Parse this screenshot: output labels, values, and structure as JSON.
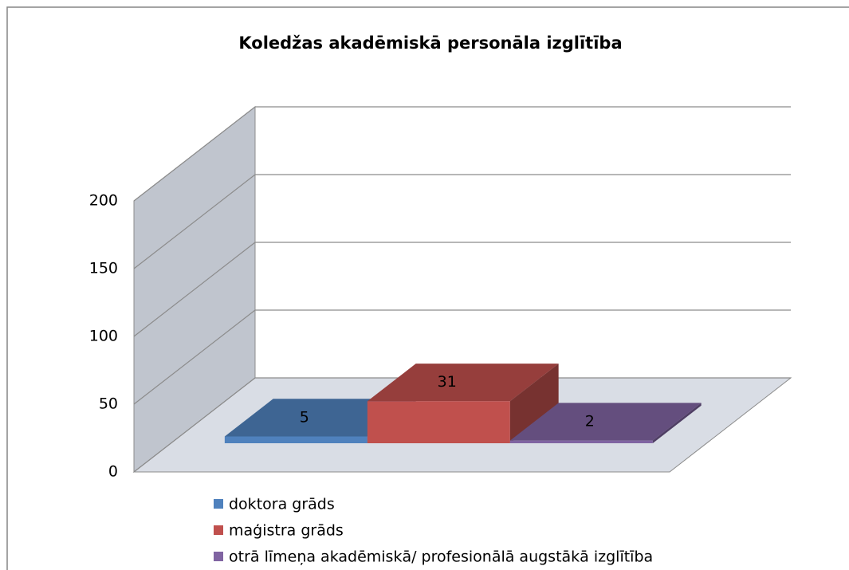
{
  "chart_data": {
    "type": "bar3d",
    "title": "Koledžas akadēmiskā personāla izglītība",
    "ylim": [
      0,
      200
    ],
    "yticks": [
      0,
      50,
      100,
      150,
      200
    ],
    "grid": true,
    "legend": "bottom",
    "series": [
      {
        "name": "doktora grāds",
        "color": "#4f81bd",
        "values": [
          5
        ]
      },
      {
        "name": "maģistra grāds",
        "color": "#c0504d",
        "values": [
          31
        ]
      },
      {
        "name": "otrā līmeņa akadēmiskā/ profesionālā augstākā izglītība",
        "color": "#8064a2",
        "values": [
          2
        ]
      }
    ]
  }
}
